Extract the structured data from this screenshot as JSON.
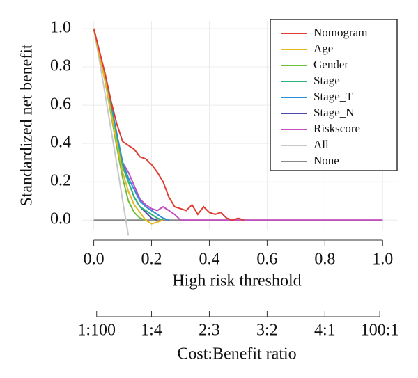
{
  "chart_data": {
    "type": "line",
    "ylabel": "Standardized net benefit",
    "xlabel": "High risk threshold",
    "x2label": "Cost:Benefit ratio",
    "xlim": [
      -0.04,
      1.05
    ],
    "ylim": [
      -0.05,
      1.04
    ],
    "xticks": [
      {
        "value": 0,
        "label": "0.0"
      },
      0.2,
      0.4,
      0.6,
      0.8,
      {
        "value": 1,
        "label": "1.0"
      }
    ],
    "yticks": [
      {
        "value": 0,
        "label": "0.0"
      },
      0.2,
      0.4,
      0.6,
      0.8,
      {
        "value": 1,
        "label": "1.0"
      }
    ],
    "x2ticks": [
      {
        "value": 0.01,
        "label": "1:100"
      },
      {
        "value": 0.2,
        "label": "1:4"
      },
      {
        "value": 0.4,
        "label": "2:3"
      },
      {
        "value": 0.6,
        "label": "3:2"
      },
      {
        "value": 0.8,
        "label": "4:1"
      },
      {
        "value": 0.99,
        "label": "100:1"
      }
    ],
    "grid": true,
    "legend": "top-right",
    "series": [
      {
        "name": "Nomogram",
        "color": "#e03c31",
        "x": [
          0,
          0.02,
          0.04,
          0.06,
          0.08,
          0.1,
          0.12,
          0.14,
          0.16,
          0.18,
          0.2,
          0.22,
          0.24,
          0.26,
          0.28,
          0.3,
          0.32,
          0.34,
          0.36,
          0.38,
          0.4,
          0.42,
          0.44,
          0.46,
          0.48,
          0.5,
          0.52
        ],
        "values": [
          1,
          0.88,
          0.76,
          0.62,
          0.5,
          0.41,
          0.39,
          0.37,
          0.33,
          0.32,
          0.29,
          0.25,
          0.2,
          0.12,
          0.07,
          0.06,
          0.05,
          0.08,
          0.03,
          0.07,
          0.04,
          0.03,
          0.04,
          0.01,
          0,
          0.01,
          0
        ]
      },
      {
        "name": "Age",
        "color": "#e6b820",
        "x": [
          0,
          0.02,
          0.04,
          0.06,
          0.08,
          0.1,
          0.12,
          0.14,
          0.16,
          0.18,
          0.2,
          0.22,
          0.24
        ],
        "values": [
          1,
          0.86,
          0.72,
          0.56,
          0.4,
          0.25,
          0.15,
          0.08,
          0.04,
          0,
          -0.02,
          -0.01,
          0
        ]
      },
      {
        "name": "Gender",
        "color": "#6abf3b",
        "x": [
          0,
          0.02,
          0.04,
          0.06,
          0.08,
          0.1,
          0.12,
          0.14,
          0.16,
          0.18
        ],
        "values": [
          1,
          0.86,
          0.72,
          0.55,
          0.38,
          0.22,
          0.1,
          0.04,
          0.01,
          0
        ]
      },
      {
        "name": "Stage",
        "color": "#2db57a",
        "x": [
          0,
          0.02,
          0.04,
          0.06,
          0.08,
          0.1,
          0.12,
          0.14,
          0.16,
          0.18,
          0.2,
          0.22,
          0.24
        ],
        "values": [
          1,
          0.87,
          0.73,
          0.58,
          0.42,
          0.28,
          0.2,
          0.12,
          0.07,
          0.05,
          0.03,
          0.01,
          0
        ]
      },
      {
        "name": "Stage_T",
        "color": "#2a8fd6",
        "x": [
          0,
          0.02,
          0.04,
          0.06,
          0.08,
          0.1,
          0.12,
          0.14,
          0.16,
          0.18,
          0.2,
          0.22,
          0.24,
          0.26
        ],
        "values": [
          1,
          0.87,
          0.74,
          0.6,
          0.45,
          0.3,
          0.22,
          0.16,
          0.1,
          0.07,
          0.05,
          0.03,
          0.01,
          0
        ]
      },
      {
        "name": "Stage_N",
        "color": "#4a4aa8",
        "x": [
          0,
          0.02,
          0.04,
          0.06,
          0.08,
          0.1,
          0.12,
          0.14,
          0.16,
          0.18,
          0.2,
          0.22
        ],
        "values": [
          1,
          0.86,
          0.73,
          0.56,
          0.4,
          0.28,
          0.2,
          0.12,
          0.07,
          0.04,
          0.01,
          0
        ]
      },
      {
        "name": "Riskscore",
        "color": "#c24fc0",
        "x": [
          0,
          0.02,
          0.04,
          0.06,
          0.08,
          0.1,
          0.12,
          0.14,
          0.16,
          0.18,
          0.2,
          0.22,
          0.24,
          0.26,
          0.28,
          0.3,
          1
        ],
        "values": [
          1,
          0.87,
          0.74,
          0.6,
          0.44,
          0.3,
          0.25,
          0.18,
          0.11,
          0.08,
          0.06,
          0.05,
          0.07,
          0.05,
          0.03,
          0,
          0
        ]
      },
      {
        "name": "All",
        "color": "#c8c8c8",
        "x": [
          0,
          0.02,
          0.04,
          0.06,
          0.08,
          0.1,
          0.12
        ],
        "values": [
          1,
          0.83,
          0.65,
          0.47,
          0.29,
          0.1,
          -0.08
        ]
      },
      {
        "name": "None",
        "color": "#888888",
        "x": [
          0,
          1
        ],
        "values": [
          0,
          0
        ]
      }
    ]
  }
}
